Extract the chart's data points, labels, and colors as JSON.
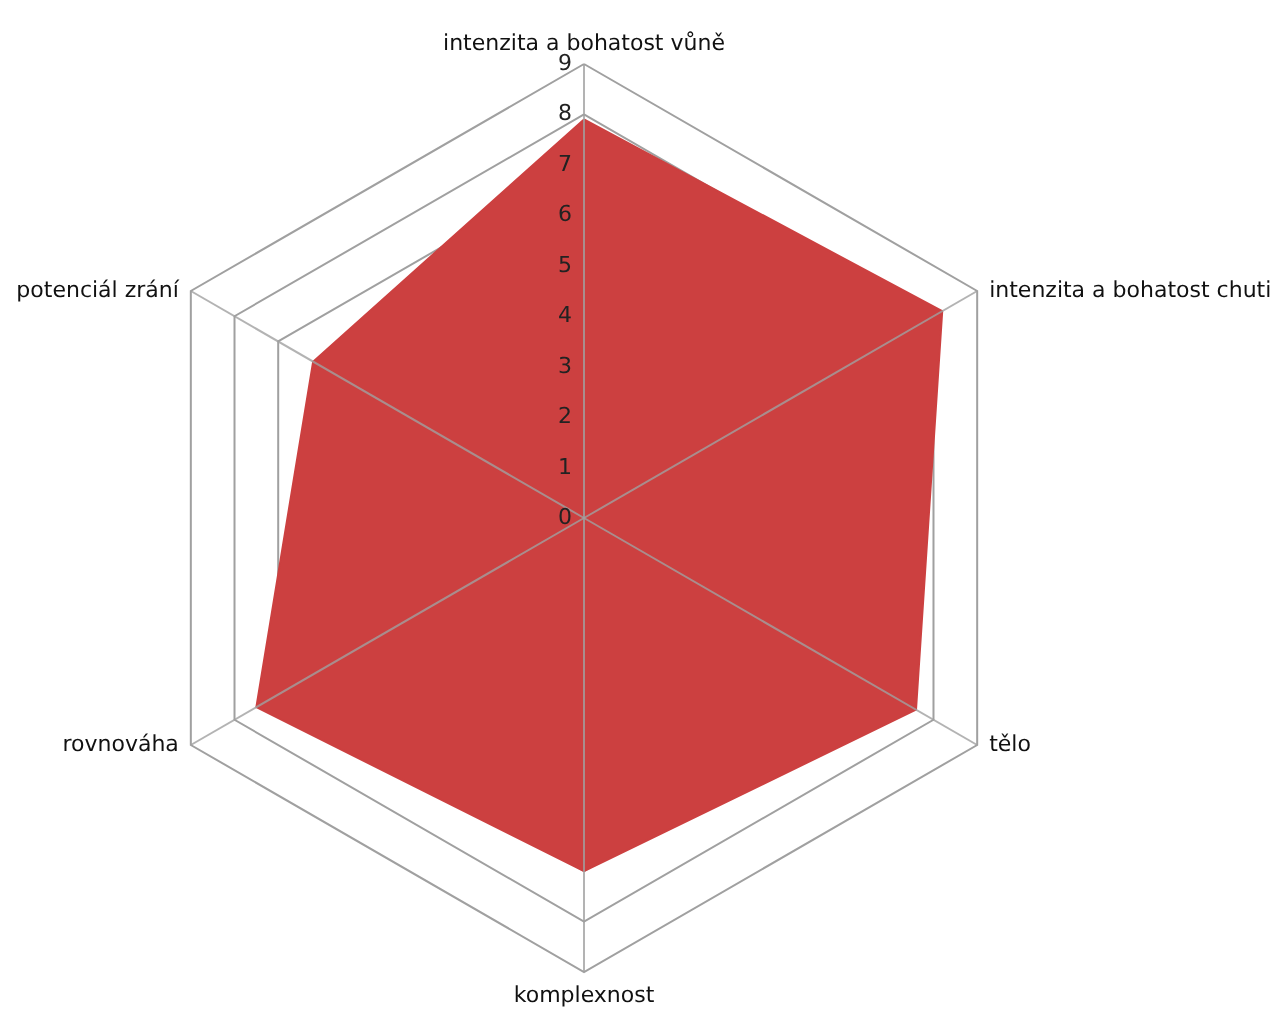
{
  "chart_data": {
    "type": "radar",
    "categories": [
      "intenzita a bohatost vůně",
      "intenzita a bohatost chuti",
      "tělo",
      "komplexnost",
      "rovnováha",
      "potenciál zrání"
    ],
    "series": [
      {
        "color": "#cc4040",
        "values": [
          7.9,
          8.2,
          7.6,
          7.0,
          7.5,
          6.2
        ]
      }
    ],
    "ylim": [
      0,
      9
    ],
    "yticks": [
      0,
      1,
      2,
      3,
      4,
      5,
      6,
      7,
      8,
      9
    ],
    "grid": true
  }
}
